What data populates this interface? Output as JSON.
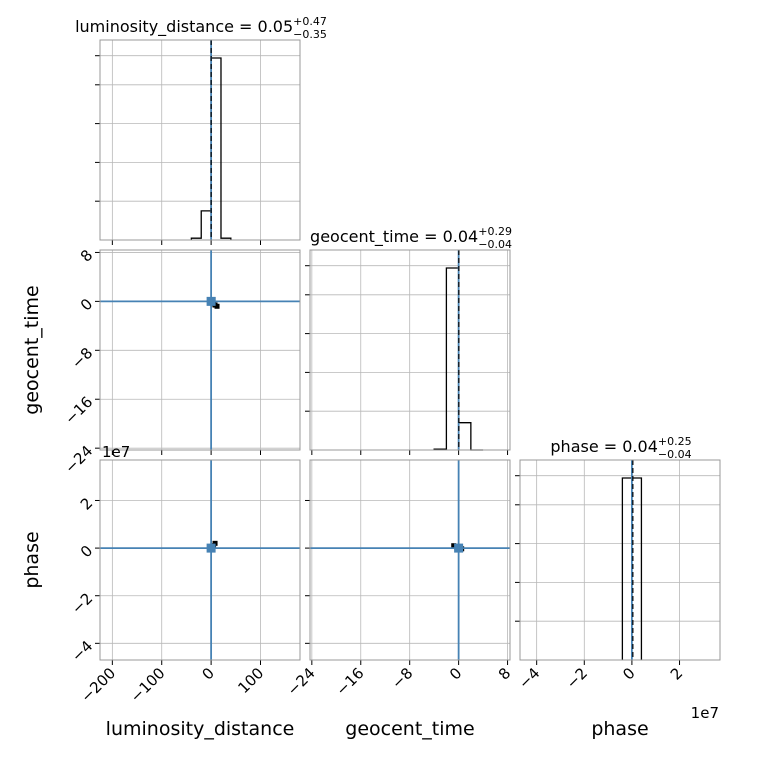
{
  "chart_data": {
    "type": "corner",
    "parameters": [
      "luminosity_distance",
      "geocent_time",
      "phase"
    ],
    "axis_labels": {
      "luminosity_distance": "luminosity_distance",
      "geocent_time": "geocent_time",
      "phase": "phase"
    },
    "ranges": {
      "luminosity_distance": [
        -225,
        180
      ],
      "geocent_time": [
        -24.3,
        8.4
      ],
      "phase": [
        -4.7,
        3.7
      ]
    },
    "ticks": {
      "luminosity_distance": {
        "values": [
          -200,
          -100,
          0,
          100
        ],
        "labels": [
          "−200",
          "−100",
          "0",
          "100"
        ],
        "offset": ""
      },
      "geocent_time": {
        "values": [
          -24,
          -16,
          -8,
          0,
          8
        ],
        "labels": [
          "−24",
          "−16",
          "−8",
          "0",
          "8"
        ],
        "offset": ""
      },
      "phase": {
        "values": [
          -4,
          -2,
          0,
          2
        ],
        "labels": [
          "−4",
          "−2",
          "0",
          "2"
        ],
        "offset": "1e7"
      }
    },
    "titles": [
      {
        "parameter": "luminosity_distance",
        "base": "luminosity_distance = 0.05",
        "upper": "+0.47",
        "lower": "−0.35"
      },
      {
        "parameter": "geocent_time",
        "base": "geocent_time = 0.04",
        "upper": "+0.29",
        "lower": "−0.04"
      },
      {
        "parameter": "phase",
        "base": "phase = 0.04",
        "upper": "+0.25",
        "lower": "−0.04"
      }
    ],
    "truths": {
      "luminosity_distance": 0,
      "geocent_time": 0,
      "phase": 0
    },
    "medians": {
      "luminosity_distance": 0.05,
      "geocent_time": 0.04,
      "phase": 0.04
    },
    "histograms": [
      {
        "parameter": "luminosity_distance",
        "bin_edges": [
          -40,
          -20,
          0,
          20,
          40
        ],
        "counts": [
          0.01,
          0.16,
          1.0,
          0.01
        ]
      },
      {
        "parameter": "geocent_time",
        "bin_edges": [
          -4,
          -2,
          0,
          2,
          4
        ],
        "counts": [
          0.005,
          1.0,
          0.15,
          0.0
        ]
      },
      {
        "parameter": "phase",
        "bin_edges": [
          -0.4,
          0,
          0.4
        ],
        "counts": [
          1.0,
          1.0
        ]
      }
    ],
    "scatter_pairs": [
      {
        "x": "luminosity_distance",
        "y": "geocent_time",
        "points": [
          [
            0,
            0
          ],
          [
            1,
            0
          ],
          [
            2,
            -0.2
          ],
          [
            5,
            -0.4
          ],
          [
            8,
            -0.6
          ],
          [
            12,
            -0.8
          ],
          [
            4,
            0.3
          ]
        ]
      },
      {
        "x": "luminosity_distance",
        "y": "phase",
        "points": [
          [
            0,
            0
          ],
          [
            1,
            0
          ],
          [
            2,
            0
          ],
          [
            5,
            0.1
          ],
          [
            8,
            0.2
          ],
          [
            3,
            -0.02
          ]
        ]
      },
      {
        "x": "geocent_time",
        "y": "phase",
        "points": [
          [
            0,
            0
          ],
          [
            -0.3,
            0.05
          ],
          [
            -0.8,
            0.1
          ],
          [
            0.2,
            0.02
          ],
          [
            0.5,
            -0.03
          ]
        ]
      }
    ],
    "truth_color": "#4682b4",
    "hist_color": "#000000",
    "grid": true
  }
}
